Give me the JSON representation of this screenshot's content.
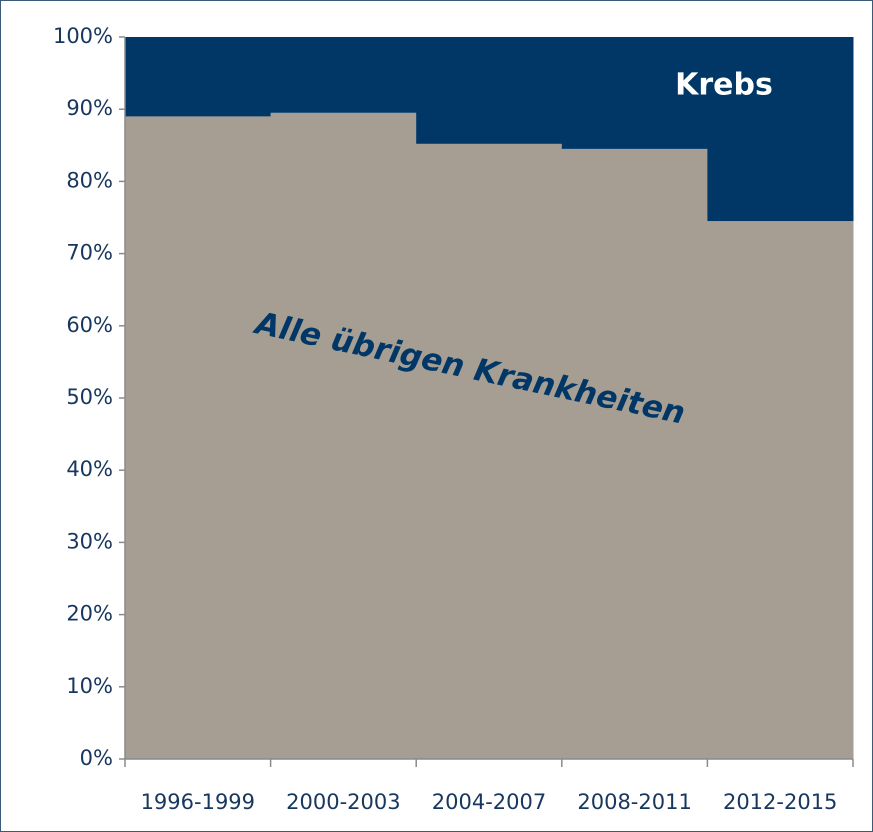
{
  "chart_data": {
    "type": "stacked_bar",
    "categories": [
      "1996-1999",
      "2000-2003",
      "2004-2007",
      "2008-2011",
      "2012-2015"
    ],
    "series": [
      {
        "name": "Alle übrigen Krankheiten",
        "color": "#a69e92",
        "values": [
          89,
          89.5,
          85.2,
          84.5,
          74.5
        ]
      },
      {
        "name": "Krebs",
        "color": "#003767",
        "values": [
          11,
          10.5,
          14.8,
          15.5,
          25.5
        ]
      }
    ],
    "ylim": [
      0,
      100
    ],
    "yticks": [
      {
        "value": 0,
        "label": "0%"
      },
      {
        "value": 10,
        "label": "10%"
      },
      {
        "value": 20,
        "label": "20%"
      },
      {
        "value": 30,
        "label": "30%"
      },
      {
        "value": 40,
        "label": "40%"
      },
      {
        "value": 50,
        "label": "50%"
      },
      {
        "value": 60,
        "label": "60%"
      },
      {
        "value": 70,
        "label": "70%"
      },
      {
        "value": 80,
        "label": "80%"
      },
      {
        "value": 90,
        "label": "90%"
      },
      {
        "value": 100,
        "label": "100%"
      }
    ]
  }
}
